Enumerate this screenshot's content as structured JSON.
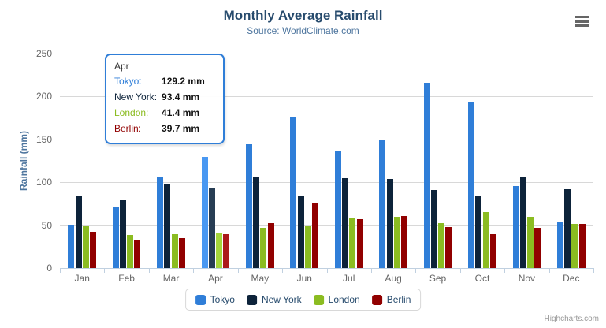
{
  "header": {
    "title": "Monthly Average Rainfall",
    "subtitle": "Source: WorldClimate.com"
  },
  "credit": "Highcharts.com",
  "colors": {
    "title": "#274b6d",
    "subtitle": "#4d759e",
    "axis_label": "#666666",
    "grid": "#d8d8d8",
    "axis_line": "#c0d0e0",
    "tooltip_border": "#2f7ed8"
  },
  "tooltip": {
    "header": "Apr",
    "rows": [
      {
        "label": "Tokyo:",
        "value": "129.2 mm",
        "color": "#2f7ed8"
      },
      {
        "label": "New York:",
        "value": "93.4 mm",
        "color": "#0d233a"
      },
      {
        "label": "London:",
        "value": "41.4 mm",
        "color": "#8bbc21"
      },
      {
        "label": "Berlin:",
        "value": "39.7 mm",
        "color": "#910000"
      }
    ]
  },
  "chart_data": {
    "type": "bar",
    "title": "Monthly Average Rainfall",
    "subtitle": "Source: WorldClimate.com",
    "xlabel": "",
    "ylabel": "Rainfall (mm)",
    "ylim": [
      0,
      250
    ],
    "yticks": [
      0,
      50,
      100,
      150,
      200,
      250
    ],
    "grid": true,
    "legend_position": "bottom",
    "highlight_category": "Apr",
    "categories": [
      "Jan",
      "Feb",
      "Mar",
      "Apr",
      "May",
      "Jun",
      "Jul",
      "Aug",
      "Sep",
      "Oct",
      "Nov",
      "Dec"
    ],
    "series": [
      {
        "name": "Tokyo",
        "color": "#2f7ed8",
        "values": [
          49.9,
          71.5,
          106.4,
          129.2,
          144.0,
          176.0,
          135.6,
          148.5,
          216.4,
          194.1,
          95.6,
          54.4
        ]
      },
      {
        "name": "New York",
        "color": "#0d233a",
        "values": [
          83.6,
          78.8,
          98.5,
          93.4,
          106.0,
          84.5,
          105.0,
          104.3,
          91.2,
          83.5,
          106.6,
          92.3
        ]
      },
      {
        "name": "London",
        "color": "#8bbc21",
        "values": [
          48.9,
          38.8,
          39.3,
          41.4,
          47.0,
          48.3,
          59.0,
          59.6,
          52.4,
          65.2,
          59.3,
          51.2
        ]
      },
      {
        "name": "Berlin",
        "color": "#910000",
        "values": [
          42.4,
          33.2,
          34.5,
          39.7,
          52.6,
          75.5,
          57.4,
          60.4,
          47.6,
          39.1,
          46.8,
          51.1
        ]
      }
    ]
  }
}
